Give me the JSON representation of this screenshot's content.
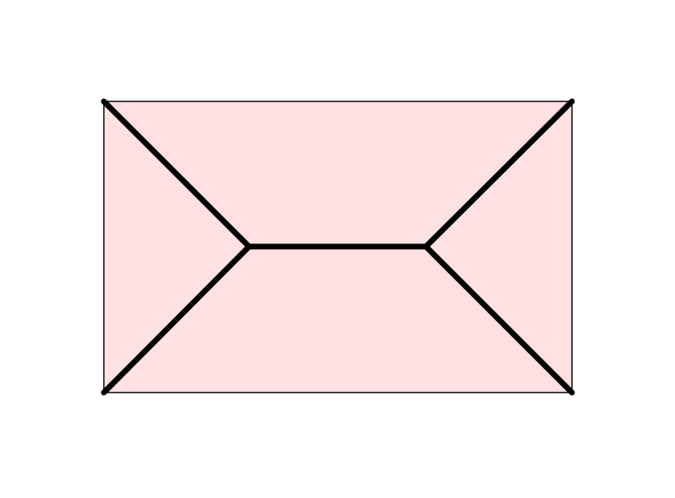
{
  "diagram": {
    "type": "rectangle-with-hexagonal-inner-graph",
    "colors": {
      "fill": "#ffe0e3",
      "border": "#000000",
      "edge": "#000000"
    }
  }
}
